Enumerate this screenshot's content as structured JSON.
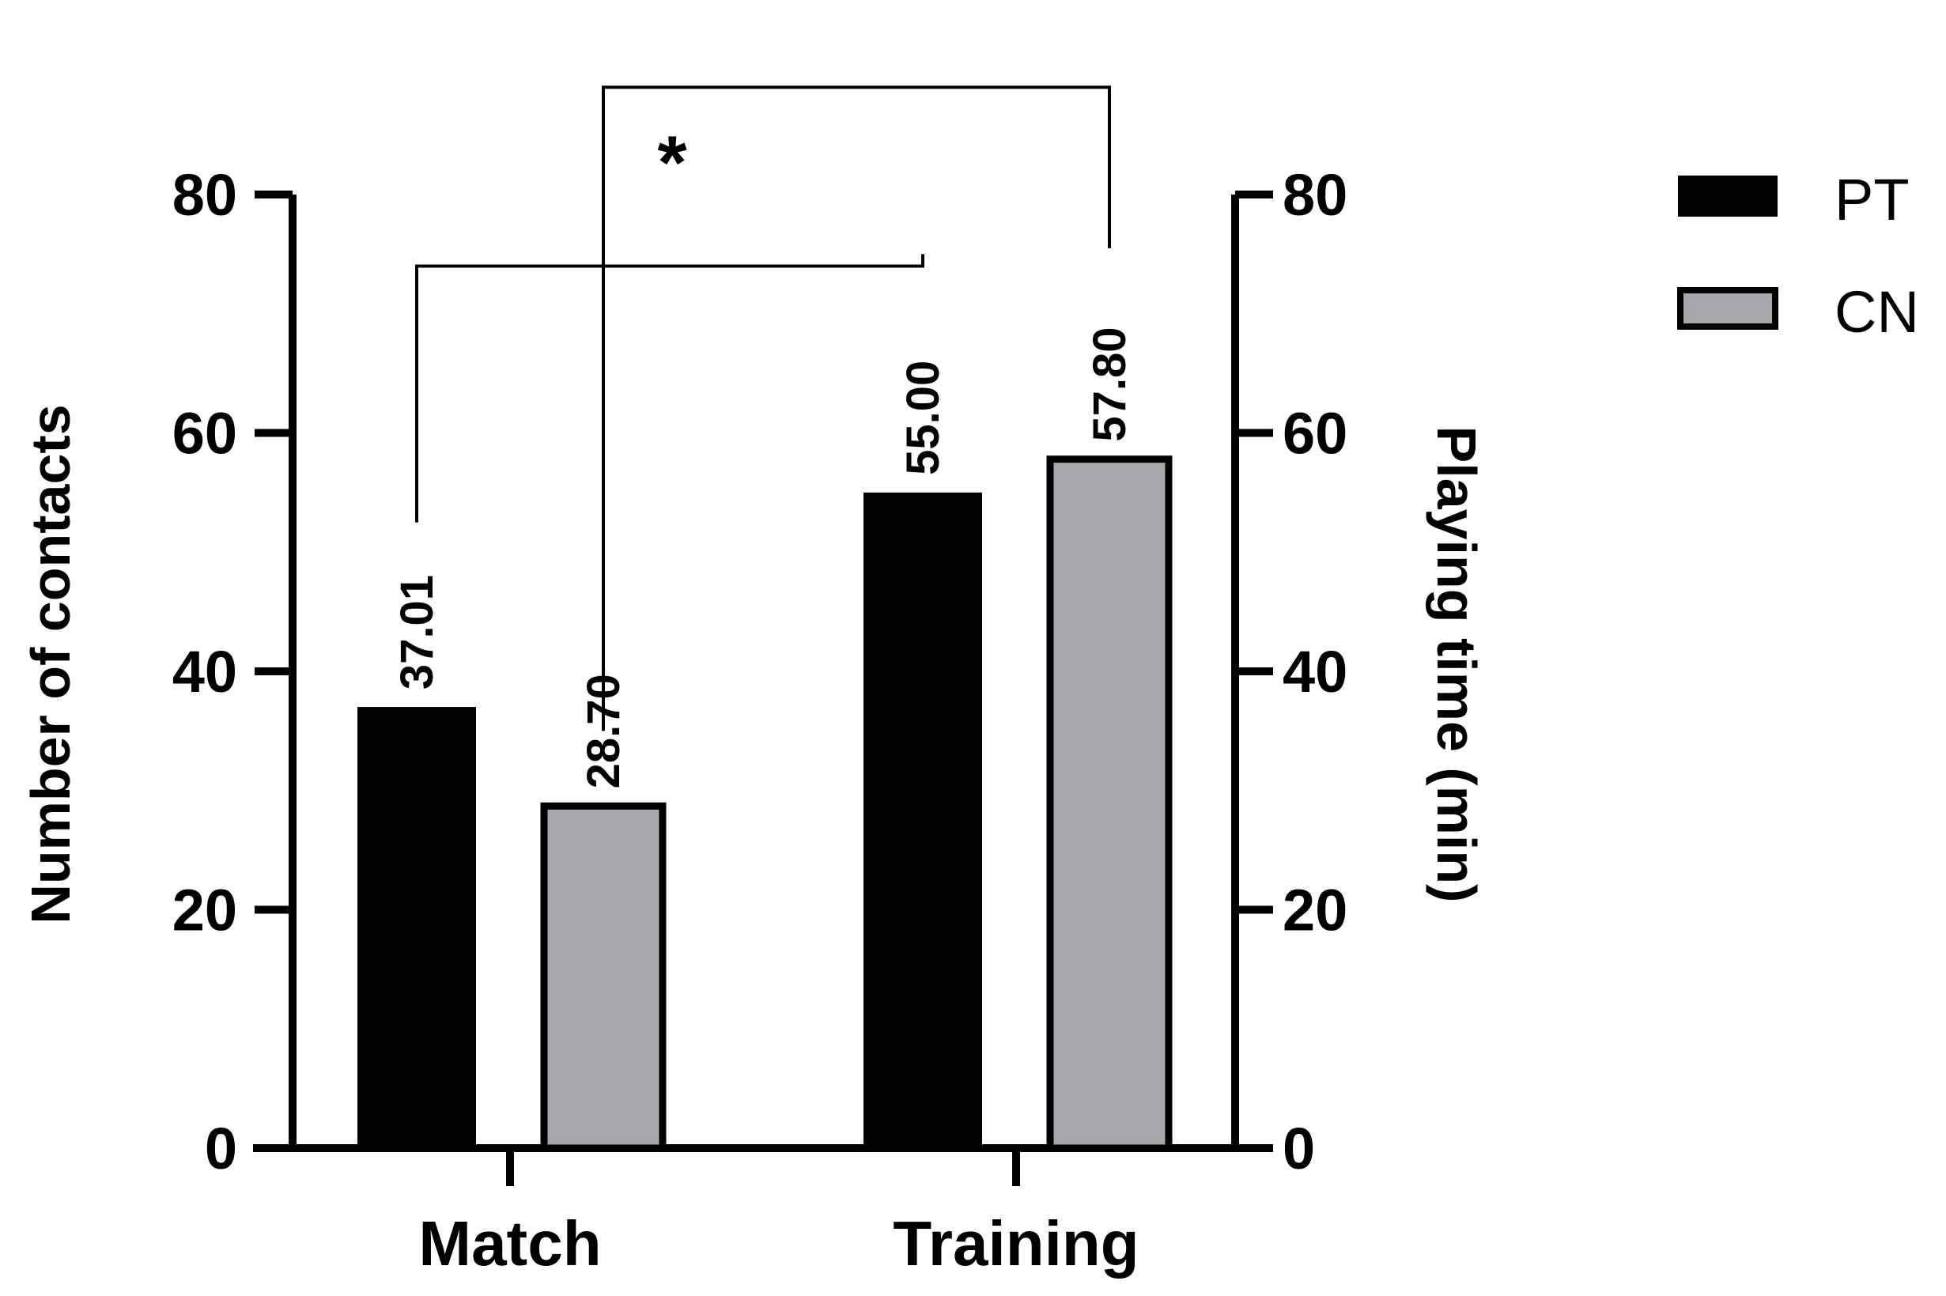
{
  "chart_data": {
    "type": "bar",
    "categories": [
      "Match",
      "Training"
    ],
    "series": [
      {
        "name": "PT",
        "values": [
          37.01,
          55.0
        ],
        "labels": [
          "37.01",
          "55.00"
        ],
        "color": "#000000"
      },
      {
        "name": "CN",
        "values": [
          28.7,
          57.8
        ],
        "labels": [
          "28.70",
          "57.80"
        ],
        "color": "#a7a6aa"
      }
    ],
    "ylabel": "Number of contacts",
    "ylabel_right": "Playing time (min)",
    "ylim": [
      0,
      80
    ],
    "y_ticks": [
      "0",
      "20",
      "40",
      "60",
      "80"
    ],
    "y2_ticks": [
      "0",
      "20",
      "40",
      "60",
      "80"
    ],
    "grid": false,
    "legend_position": "top-right",
    "significance": [
      {
        "from": "Match PT",
        "to": "Training PT",
        "mark": "*"
      },
      {
        "from": "Match CN",
        "to": "Training CN",
        "mark": "*"
      }
    ]
  }
}
